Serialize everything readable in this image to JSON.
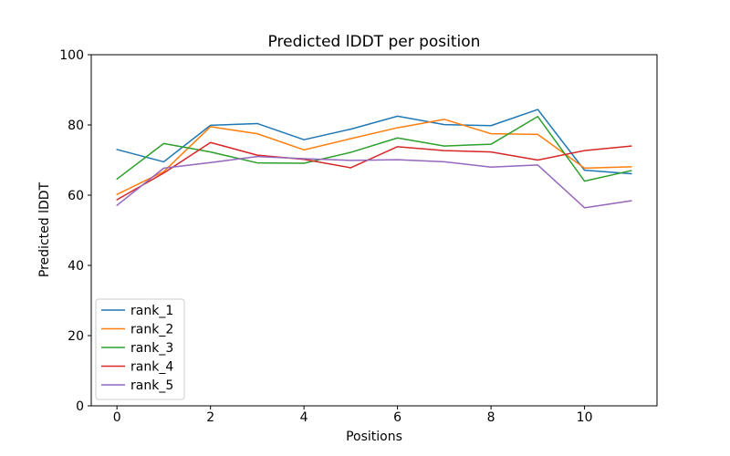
{
  "chart_data": {
    "type": "line",
    "title": "Predicted lDDT per position",
    "xlabel": "Positions",
    "ylabel": "Predicted lDDT",
    "xlim": [
      -0.55,
      11.55
    ],
    "ylim": [
      0,
      100
    ],
    "xticks": [
      0,
      2,
      4,
      6,
      8,
      10
    ],
    "yticks": [
      0,
      20,
      40,
      60,
      80,
      100
    ],
    "grid": false,
    "legend_position": "lower left",
    "x": [
      0,
      1,
      2,
      3,
      4,
      5,
      6,
      7,
      8,
      9,
      10,
      11
    ],
    "series": [
      {
        "name": "rank_1",
        "color": "#1f77b4",
        "values": [
          73.0,
          69.5,
          79.9,
          80.4,
          75.8,
          78.8,
          82.5,
          80.1,
          79.8,
          84.4,
          67.1,
          66.1
        ]
      },
      {
        "name": "rank_2",
        "color": "#ff7f0e",
        "values": [
          60.2,
          66.7,
          79.5,
          77.5,
          72.9,
          76.1,
          79.2,
          81.6,
          77.5,
          77.3,
          67.7,
          68.1
        ]
      },
      {
        "name": "rank_3",
        "color": "#2ca02c",
        "values": [
          64.6,
          74.7,
          72.3,
          69.2,
          69.1,
          72.2,
          76.3,
          74.0,
          74.5,
          82.4,
          64.0,
          67.0
        ]
      },
      {
        "name": "rank_4",
        "color": "#d62728",
        "values": [
          58.7,
          66.3,
          75.0,
          71.4,
          70.2,
          67.8,
          73.8,
          72.7,
          72.3,
          70.0,
          72.7,
          74.0
        ]
      },
      {
        "name": "rank_5",
        "color": "#9467bd",
        "values": [
          57.1,
          67.7,
          69.3,
          71.0,
          70.4,
          69.9,
          70.1,
          69.5,
          68.0,
          68.6,
          56.4,
          58.4
        ]
      }
    ],
    "axis_color": "#000000",
    "legend_border_color": "#cccccc",
    "background_color": "#ffffff"
  }
}
